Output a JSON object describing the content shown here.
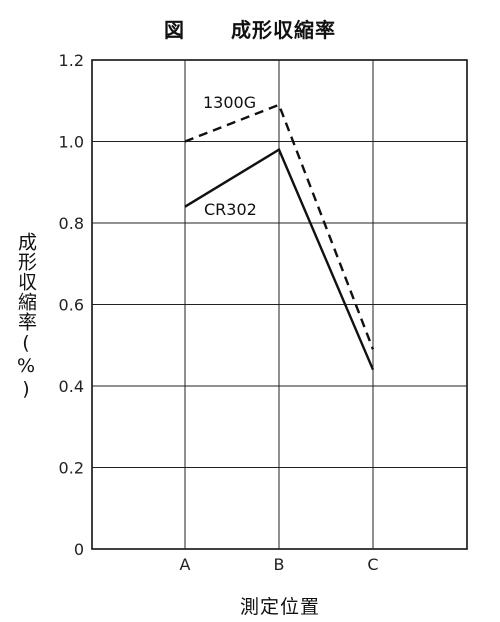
{
  "chart_data": {
    "type": "line",
    "title_prefix": "図",
    "title": "成形収縮率",
    "xlabel": "測定位置",
    "ylabel": "成形収縮率(%)",
    "categories": [
      "A",
      "B",
      "C"
    ],
    "ylim": [
      0,
      1.2
    ],
    "yticks": [
      "0",
      "0.2",
      "0.4",
      "0.6",
      "0.8",
      "1.0",
      "1.2"
    ],
    "grid": true,
    "series": [
      {
        "name": "1300G",
        "style": "dashed",
        "color": "#111111",
        "values": [
          1.0,
          1.09,
          0.49
        ]
      },
      {
        "name": "CR302",
        "style": "solid",
        "color": "#111111",
        "values": [
          0.84,
          0.98,
          0.44
        ]
      }
    ]
  }
}
